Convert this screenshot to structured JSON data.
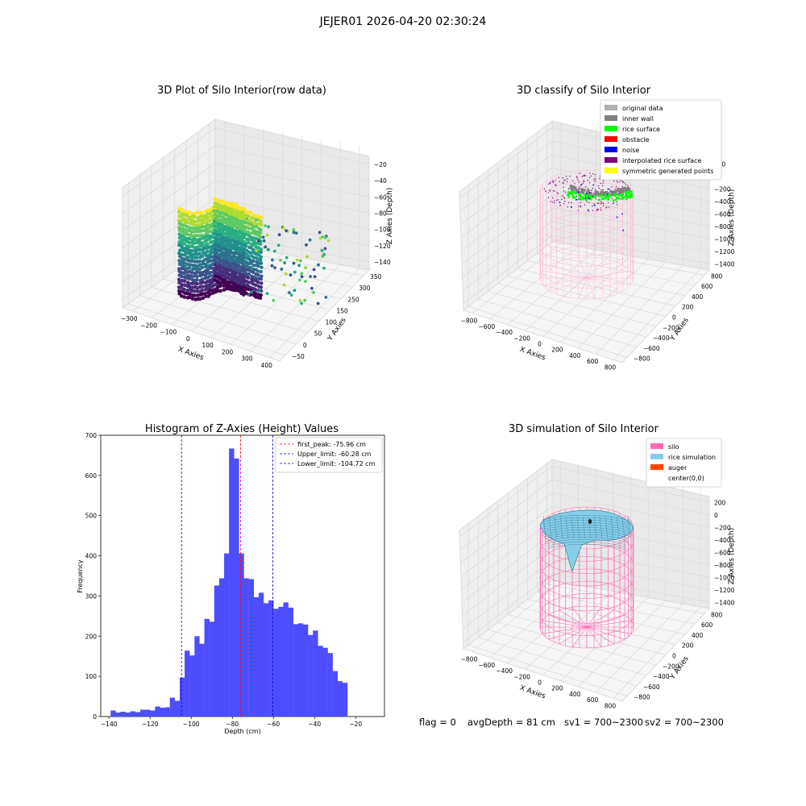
{
  "figure_title": "JEJER01 2026-04-20 02:30:24",
  "status_line": {
    "flag": "flag = 0",
    "avg_depth": "avgDepth = 81 cm",
    "sv1": "sv1 = 700~2300",
    "sv2": "sv2 = 700~2300"
  },
  "colors": {
    "histogram_bar": "#4d4dff",
    "first_peak_line": "#ff0000",
    "limit_line": "#0000cc",
    "silo": "#ff69b4",
    "rice_simulation": "#87ceeb",
    "auger": "#ff4500",
    "inner_wall": "#808080",
    "original_data": "#b0b0b0",
    "rice_surface": "#00ff00",
    "obstacle": "#ff0000",
    "noise": "#0000ff",
    "interpolated_rice_surface": "#800080",
    "symmetric_points": "#ffff00"
  },
  "chart_data": [
    {
      "type": "scatter",
      "title": "3D Plot of Silo Interior(row data)",
      "xlabel": "X Axies",
      "ylabel": "Y Axies",
      "zlabel": "Z Axies (Depth)",
      "x_ticks": [
        "−300",
        "−200",
        "−100",
        "0",
        "100",
        "200",
        "300",
        "400"
      ],
      "y_ticks": [
        "−50",
        "0",
        "50",
        "100",
        "150",
        "250",
        "300",
        "350"
      ],
      "z_ticks": [
        "−20",
        "−40",
        "−60",
        "−80",
        "−100",
        "−120",
        "−140"
      ],
      "colormap": "viridis"
    },
    {
      "type": "scatter",
      "title": "3D classify of Silo Interior",
      "xlabel": "X Axies",
      "ylabel": "Y Axies",
      "zlabel": "Z Axies (Depth)",
      "x_ticks": [
        "−800",
        "−600",
        "−400",
        "−200",
        "0",
        "200",
        "400",
        "600",
        "800"
      ],
      "y_ticks": [
        "−800",
        "−600",
        "−400",
        "−200",
        "0",
        "200",
        "400",
        "600",
        "800"
      ],
      "z_ticks": [
        "200",
        "0",
        "−200",
        "−400",
        "−600",
        "−800",
        "−1000",
        "−1200",
        "−1400"
      ],
      "legend_position": "top-right",
      "legend": [
        {
          "label": "original data",
          "color": "#b0b0b0"
        },
        {
          "label": "inner wall",
          "color": "#808080"
        },
        {
          "label": "rice surface",
          "color": "#00ff00"
        },
        {
          "label": "obstacle",
          "color": "#ff0000"
        },
        {
          "label": "noise",
          "color": "#0000ff"
        },
        {
          "label": "interpolated rice surface",
          "color": "#800080"
        },
        {
          "label": "symmetric generated points",
          "color": "#ffff00"
        }
      ]
    },
    {
      "type": "bar",
      "title": "Histogram of Z-Axies (Height) Values",
      "xlabel": "Depth (cm)",
      "ylabel": "Frequency",
      "xlim": [
        -144,
        -6
      ],
      "ylim": [
        0,
        700
      ],
      "x_ticks": [
        -140,
        -120,
        -100,
        -80,
        -60,
        -40,
        -20
      ],
      "y_ticks": [
        0,
        100,
        200,
        300,
        400,
        500,
        600,
        700
      ],
      "bin_width": 2.4,
      "bin_start": -139.2,
      "values": [
        15,
        10,
        12,
        10,
        13,
        11,
        17,
        17,
        15,
        25,
        22,
        23,
        47,
        39,
        97,
        164,
        152,
        200,
        181,
        243,
        236,
        326,
        344,
        406,
        667,
        642,
        406,
        344,
        342,
        297,
        308,
        282,
        289,
        268,
        273,
        284,
        271,
        230,
        232,
        229,
        203,
        214,
        176,
        171,
        158,
        113,
        88,
        84
      ],
      "vlines": [
        {
          "x": -75.96,
          "style": "first_peak",
          "label": "first_peak: -75.96 cm"
        },
        {
          "x": -60.28,
          "style": "limit",
          "label": "Upper_limit: -60.28 cm"
        },
        {
          "x": -104.72,
          "style": "limit",
          "label": "Lower_limit: -104.72 cm"
        }
      ],
      "legend_position": "top-right"
    },
    {
      "type": "surface",
      "title": "3D simulation of Silo Interior",
      "xlabel": "X Axies",
      "ylabel": "Y Axies",
      "zlabel": "Z Axies (Depth)",
      "x_ticks": [
        "−800",
        "−600",
        "−400",
        "−200",
        "0",
        "200",
        "400",
        "600",
        "800"
      ],
      "y_ticks": [
        "−800",
        "−600",
        "−400",
        "−200",
        "0",
        "200",
        "400",
        "600",
        "800"
      ],
      "z_ticks": [
        "200",
        "0",
        "−200",
        "−400",
        "−600",
        "−800",
        "−1000",
        "−1200",
        "−1400"
      ],
      "legend_position": "top-right",
      "legend": [
        {
          "label": "silo",
          "color": "#ff69b4"
        },
        {
          "label": "rice simulation",
          "color": "#87ceeb"
        },
        {
          "label": "auger",
          "color": "#ff4500"
        },
        {
          "label": "center(0,0)",
          "color": ""
        }
      ]
    }
  ]
}
